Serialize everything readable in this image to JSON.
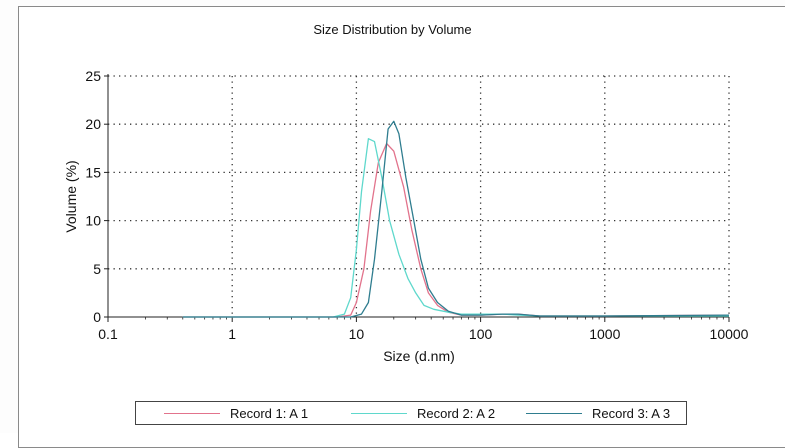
{
  "chart_data": {
    "type": "line",
    "title": "Size Distribution by Volume",
    "xlabel": "Size (d.nm)",
    "ylabel": "Volume (%)",
    "xscale": "log",
    "xlim": [
      0.1,
      10000
    ],
    "ylim": [
      0,
      25
    ],
    "x_ticks": [
      "0.1",
      "1",
      "10",
      "100",
      "1000",
      "10000"
    ],
    "y_ticks": [
      "0",
      "5",
      "10",
      "15",
      "20",
      "25"
    ],
    "grid": true,
    "legend_position": "bottom",
    "series": [
      {
        "name": "Record 1: A 1",
        "color": "#e2738c",
        "points": [
          [
            0.4,
            0
          ],
          [
            7,
            0
          ],
          [
            9,
            0.2
          ],
          [
            10,
            1.5
          ],
          [
            11.5,
            5
          ],
          [
            13,
            11
          ],
          [
            15,
            16
          ],
          [
            17.5,
            18
          ],
          [
            20,
            17.2
          ],
          [
            24,
            13.5
          ],
          [
            28,
            9
          ],
          [
            33,
            5
          ],
          [
            38,
            2.5
          ],
          [
            45,
            1.2
          ],
          [
            55,
            0.5
          ],
          [
            70,
            0.2
          ],
          [
            100,
            0.2
          ],
          [
            150,
            0.3
          ],
          [
            200,
            0.3
          ],
          [
            300,
            0.1
          ],
          [
            500,
            0.1
          ],
          [
            1000,
            0.1
          ],
          [
            10000,
            0.2
          ]
        ]
      },
      {
        "name": "Record 2: A 2",
        "color": "#5fd8cc",
        "points": [
          [
            0.4,
            0
          ],
          [
            6.5,
            0
          ],
          [
            8,
            0.3
          ],
          [
            9,
            2
          ],
          [
            10,
            7
          ],
          [
            11,
            13
          ],
          [
            12.5,
            18.5
          ],
          [
            14,
            18.2
          ],
          [
            16,
            14.5
          ],
          [
            18.5,
            10
          ],
          [
            22,
            6.5
          ],
          [
            26,
            4
          ],
          [
            30,
            2.5
          ],
          [
            35,
            1.2
          ],
          [
            42,
            0.8
          ],
          [
            55,
            0.5
          ],
          [
            70,
            0.3
          ],
          [
            100,
            0.3
          ],
          [
            150,
            0.3
          ],
          [
            200,
            0.2
          ],
          [
            300,
            0.1
          ],
          [
            1000,
            0.1
          ],
          [
            10000,
            0.1
          ]
        ]
      },
      {
        "name": "Record 3: A 3",
        "color": "#2f7d8f",
        "points": [
          [
            0.4,
            0
          ],
          [
            9,
            0
          ],
          [
            11,
            0.3
          ],
          [
            12.5,
            1.5
          ],
          [
            14,
            6
          ],
          [
            16,
            13
          ],
          [
            18,
            19.5
          ],
          [
            20,
            20.3
          ],
          [
            22,
            19
          ],
          [
            25,
            14.5
          ],
          [
            29,
            10
          ],
          [
            33,
            6
          ],
          [
            38,
            3
          ],
          [
            45,
            1.5
          ],
          [
            55,
            0.6
          ],
          [
            70,
            0.2
          ],
          [
            100,
            0.2
          ],
          [
            150,
            0.3
          ],
          [
            200,
            0.3
          ],
          [
            300,
            0.1
          ],
          [
            1000,
            0.1
          ],
          [
            10000,
            0.2
          ]
        ]
      }
    ]
  }
}
